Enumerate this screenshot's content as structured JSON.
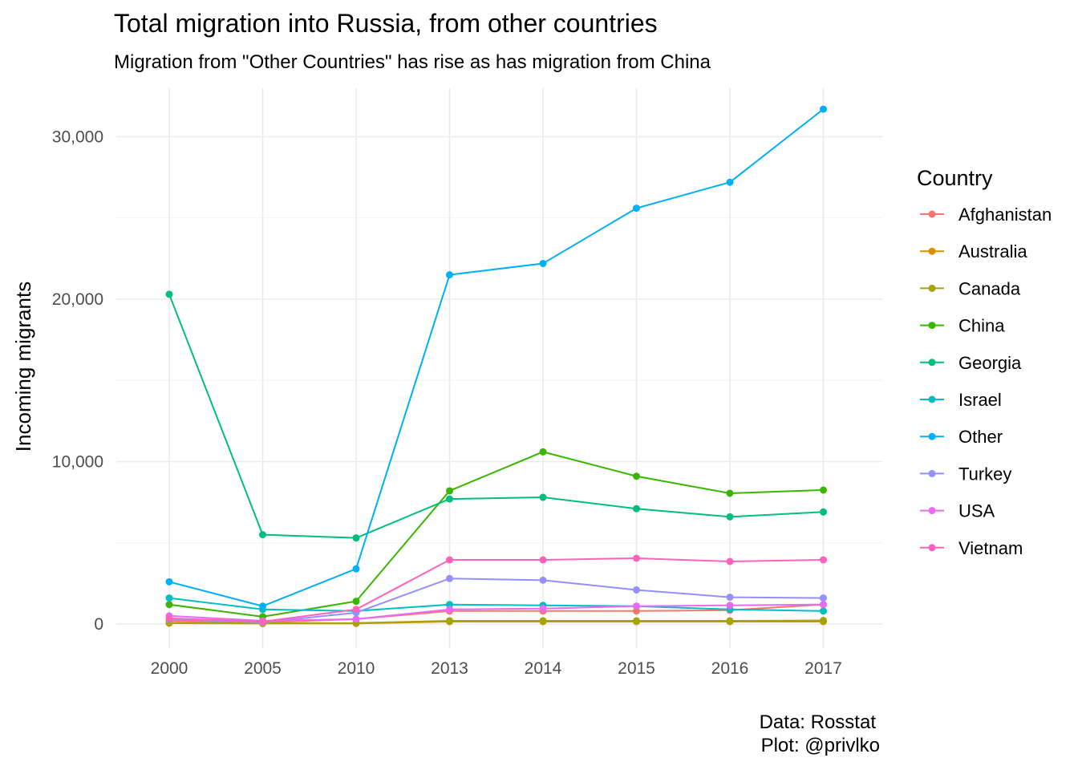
{
  "chart_data": {
    "type": "line",
    "title": "Total migration into Russia, from other countries",
    "subtitle": "Migration from \"Other Countries\" has rise as has migration from China",
    "xlabel": "",
    "ylabel": "Incoming migrants",
    "categories": [
      "2000",
      "2005",
      "2010",
      "2013",
      "2014",
      "2015",
      "2016",
      "2017"
    ],
    "ylim": [
      -1500,
      33000
    ],
    "yticks": [
      0,
      10000,
      20000,
      30000
    ],
    "ytick_labels": [
      "0",
      "10,000",
      "20,000",
      "30,000"
    ],
    "grid": true,
    "legend": {
      "title": "Country",
      "position": "right"
    },
    "caption": [
      "Data: Rosstat",
      "Plot: @privlko"
    ],
    "series": [
      {
        "name": "Afghanistan",
        "color": "#F8766D",
        "values": [
          200,
          100,
          300,
          800,
          800,
          800,
          850,
          1200
        ]
      },
      {
        "name": "Australia",
        "color": "#D89000",
        "values": [
          50,
          30,
          40,
          150,
          150,
          150,
          150,
          150
        ]
      },
      {
        "name": "Canada",
        "color": "#A3A500",
        "values": [
          80,
          50,
          60,
          200,
          200,
          200,
          200,
          220
        ]
      },
      {
        "name": "China",
        "color": "#39B600",
        "values": [
          1200,
          450,
          1400,
          8200,
          10600,
          9100,
          8050,
          8250
        ]
      },
      {
        "name": "Georgia",
        "color": "#00BF7D",
        "values": [
          20300,
          5500,
          5300,
          7700,
          7800,
          7100,
          6600,
          6900
        ]
      },
      {
        "name": "Israel",
        "color": "#00BFC4",
        "values": [
          1600,
          900,
          800,
          1200,
          1150,
          1100,
          900,
          800
        ]
      },
      {
        "name": "Other",
        "color": "#00B0F6",
        "values": [
          2600,
          1100,
          3400,
          21500,
          22200,
          25600,
          27200,
          31700
        ]
      },
      {
        "name": "Turkey",
        "color": "#9590FF",
        "values": [
          300,
          100,
          700,
          2800,
          2700,
          2100,
          1650,
          1600
        ]
      },
      {
        "name": "USA",
        "color": "#E76BF3",
        "values": [
          500,
          200,
          300,
          900,
          950,
          1100,
          1150,
          1200
        ]
      },
      {
        "name": "Vietnam",
        "color": "#FF62BC",
        "values": [
          350,
          150,
          900,
          3950,
          3950,
          4050,
          3850,
          3950
        ]
      }
    ]
  }
}
